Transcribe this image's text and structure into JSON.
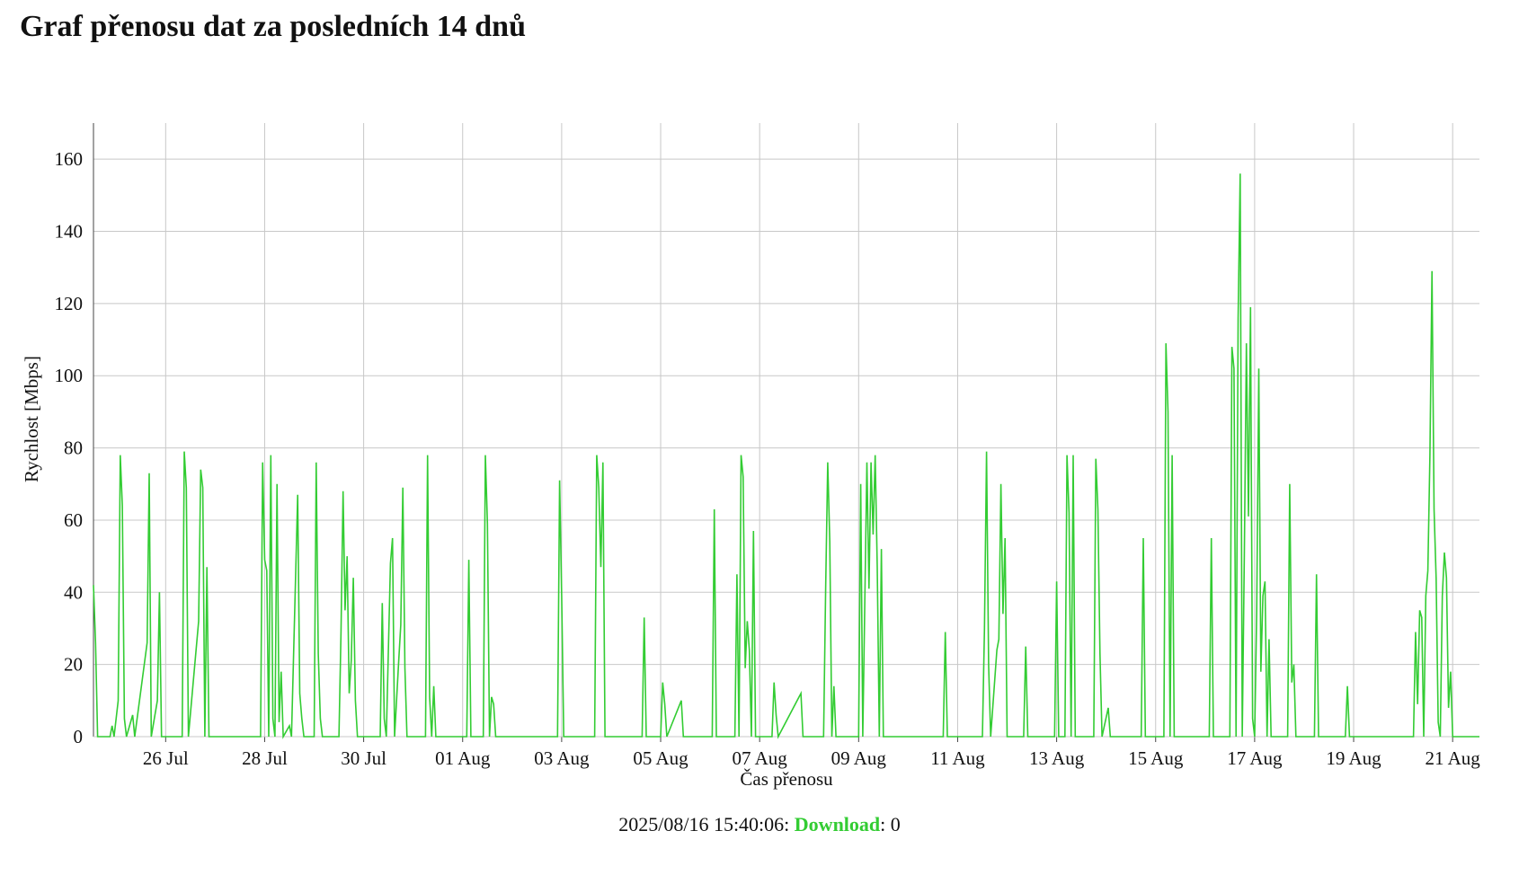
{
  "page": {
    "title": "Graf přenosu dat za posledních 14 dnů"
  },
  "status": {
    "timestamp": "2025/08/16 15:40:06",
    "separator": ":",
    "series_name": "Download",
    "colon": ":",
    "value": "0"
  },
  "colors": {
    "series": "#33cc33",
    "grid": "#c8c8c8",
    "axis": "#444444"
  },
  "chart_data": {
    "type": "line",
    "title": "",
    "xlabel": "Čas přenosu",
    "ylabel": "Rychlost [Mbps]",
    "xlim": [
      "2025-07-24T13:00",
      "2025-08-21T13:00"
    ],
    "ylim": [
      0,
      170
    ],
    "yticks": [
      0,
      20,
      40,
      60,
      80,
      100,
      120,
      140,
      160
    ],
    "xticks": [
      {
        "date": "2025-07-26",
        "label": "26 Jul"
      },
      {
        "date": "2025-07-28",
        "label": "28 Jul"
      },
      {
        "date": "2025-07-30",
        "label": "30 Jul"
      },
      {
        "date": "2025-08-01",
        "label": "01 Aug"
      },
      {
        "date": "2025-08-03",
        "label": "03 Aug"
      },
      {
        "date": "2025-08-05",
        "label": "05 Aug"
      },
      {
        "date": "2025-08-07",
        "label": "07 Aug"
      },
      {
        "date": "2025-08-09",
        "label": "09 Aug"
      },
      {
        "date": "2025-08-11",
        "label": "11 Aug"
      },
      {
        "date": "2025-08-13",
        "label": "13 Aug"
      },
      {
        "date": "2025-08-15",
        "label": "15 Aug"
      },
      {
        "date": "2025-08-17",
        "label": "17 Aug"
      },
      {
        "date": "2025-08-19",
        "label": "19 Aug"
      },
      {
        "date": "2025-08-21",
        "label": "21 Aug"
      }
    ],
    "grid": true,
    "series": [
      {
        "name": "Download",
        "color": "#33cc33",
        "points": [
          [
            "2025-07-24T13:00",
            42
          ],
          [
            "2025-07-24T14:00",
            26
          ],
          [
            "2025-07-24T15:00",
            0
          ],
          [
            "2025-07-24T21:00",
            0
          ],
          [
            "2025-07-24T22:00",
            3
          ],
          [
            "2025-07-24T23:00",
            0
          ],
          [
            "2025-07-25T01:00",
            10
          ],
          [
            "2025-07-25T02:00",
            78
          ],
          [
            "2025-07-25T03:00",
            64
          ],
          [
            "2025-07-25T04:00",
            5
          ],
          [
            "2025-07-25T05:00",
            0
          ],
          [
            "2025-07-25T08:00",
            6
          ],
          [
            "2025-07-25T09:00",
            0
          ],
          [
            "2025-07-25T15:00",
            26
          ],
          [
            "2025-07-25T16:00",
            73
          ],
          [
            "2025-07-25T17:00",
            0
          ],
          [
            "2025-07-25T20:00",
            10
          ],
          [
            "2025-07-25T21:00",
            40
          ],
          [
            "2025-07-25T22:00",
            0
          ],
          [
            "2025-07-26T08:00",
            0
          ],
          [
            "2025-07-26T09:00",
            79
          ],
          [
            "2025-07-26T10:00",
            69
          ],
          [
            "2025-07-26T11:00",
            0
          ],
          [
            "2025-07-26T16:00",
            32
          ],
          [
            "2025-07-26T17:00",
            74
          ],
          [
            "2025-07-26T18:00",
            69
          ],
          [
            "2025-07-26T19:00",
            0
          ],
          [
            "2025-07-26T20:00",
            47
          ],
          [
            "2025-07-26T21:00",
            0
          ],
          [
            "2025-07-27T22:00",
            0
          ],
          [
            "2025-07-27T23:00",
            76
          ],
          [
            "2025-07-28T00:00",
            49
          ],
          [
            "2025-07-28T01:00",
            46
          ],
          [
            "2025-07-28T02:00",
            0
          ],
          [
            "2025-07-28T03:00",
            78
          ],
          [
            "2025-07-28T04:00",
            5
          ],
          [
            "2025-07-28T05:00",
            0
          ],
          [
            "2025-07-28T06:00",
            70
          ],
          [
            "2025-07-28T07:00",
            4
          ],
          [
            "2025-07-28T08:00",
            18
          ],
          [
            "2025-07-28T09:00",
            0
          ],
          [
            "2025-07-28T12:00",
            3
          ],
          [
            "2025-07-28T13:00",
            0
          ],
          [
            "2025-07-28T16:00",
            67
          ],
          [
            "2025-07-28T17:00",
            12
          ],
          [
            "2025-07-28T18:00",
            5
          ],
          [
            "2025-07-28T19:00",
            0
          ],
          [
            "2025-07-29T00:00",
            0
          ],
          [
            "2025-07-29T01:00",
            76
          ],
          [
            "2025-07-29T02:00",
            23
          ],
          [
            "2025-07-29T03:00",
            5
          ],
          [
            "2025-07-29T04:00",
            0
          ],
          [
            "2025-07-29T12:00",
            0
          ],
          [
            "2025-07-29T13:00",
            29
          ],
          [
            "2025-07-29T14:00",
            68
          ],
          [
            "2025-07-29T15:00",
            35
          ],
          [
            "2025-07-29T16:00",
            50
          ],
          [
            "2025-07-29T17:00",
            12
          ],
          [
            "2025-07-29T18:00",
            21
          ],
          [
            "2025-07-29T19:00",
            44
          ],
          [
            "2025-07-29T20:00",
            10
          ],
          [
            "2025-07-29T21:00",
            0
          ],
          [
            "2025-07-30T08:00",
            0
          ],
          [
            "2025-07-30T09:00",
            37
          ],
          [
            "2025-07-30T10:00",
            5
          ],
          [
            "2025-07-30T11:00",
            0
          ],
          [
            "2025-07-30T13:00",
            48
          ],
          [
            "2025-07-30T14:00",
            55
          ],
          [
            "2025-07-30T15:00",
            0
          ],
          [
            "2025-07-30T17:00",
            21
          ],
          [
            "2025-07-30T18:00",
            31
          ],
          [
            "2025-07-30T19:00",
            69
          ],
          [
            "2025-07-30T20:00",
            19
          ],
          [
            "2025-07-30T21:00",
            0
          ],
          [
            "2025-07-31T06:00",
            0
          ],
          [
            "2025-07-31T07:00",
            78
          ],
          [
            "2025-07-31T08:00",
            11
          ],
          [
            "2025-07-31T09:00",
            0
          ],
          [
            "2025-07-31T10:00",
            14
          ],
          [
            "2025-07-31T11:00",
            0
          ],
          [
            "2025-08-01T02:00",
            0
          ],
          [
            "2025-08-01T03:00",
            49
          ],
          [
            "2025-08-01T04:00",
            0
          ],
          [
            "2025-08-01T10:00",
            0
          ],
          [
            "2025-08-01T11:00",
            78
          ],
          [
            "2025-08-01T12:00",
            59
          ],
          [
            "2025-08-01T13:00",
            0
          ],
          [
            "2025-08-01T14:00",
            11
          ],
          [
            "2025-08-01T15:00",
            9
          ],
          [
            "2025-08-01T16:00",
            0
          ],
          [
            "2025-08-02T22:00",
            0
          ],
          [
            "2025-08-02T23:00",
            71
          ],
          [
            "2025-08-03T00:00",
            39
          ],
          [
            "2025-08-03T01:00",
            0
          ],
          [
            "2025-08-03T16:00",
            0
          ],
          [
            "2025-08-03T17:00",
            78
          ],
          [
            "2025-08-03T18:00",
            69
          ],
          [
            "2025-08-03T19:00",
            47
          ],
          [
            "2025-08-03T20:00",
            76
          ],
          [
            "2025-08-03T21:00",
            0
          ],
          [
            "2025-08-04T15:00",
            0
          ],
          [
            "2025-08-04T16:00",
            33
          ],
          [
            "2025-08-04T17:00",
            0
          ],
          [
            "2025-08-05T00:00",
            0
          ],
          [
            "2025-08-05T01:00",
            15
          ],
          [
            "2025-08-05T02:00",
            9
          ],
          [
            "2025-08-05T03:00",
            0
          ],
          [
            "2025-08-05T10:00",
            10
          ],
          [
            "2025-08-05T11:00",
            0
          ],
          [
            "2025-08-06T01:00",
            0
          ],
          [
            "2025-08-06T02:00",
            63
          ],
          [
            "2025-08-06T03:00",
            0
          ],
          [
            "2025-08-06T12:00",
            0
          ],
          [
            "2025-08-06T13:00",
            45
          ],
          [
            "2025-08-06T14:00",
            0
          ],
          [
            "2025-08-06T15:00",
            78
          ],
          [
            "2025-08-06T16:00",
            72
          ],
          [
            "2025-08-06T17:00",
            19
          ],
          [
            "2025-08-06T18:00",
            32
          ],
          [
            "2025-08-06T19:00",
            24
          ],
          [
            "2025-08-06T20:00",
            0
          ],
          [
            "2025-08-06T21:00",
            57
          ],
          [
            "2025-08-06T22:00",
            0
          ],
          [
            "2025-08-07T06:00",
            0
          ],
          [
            "2025-08-07T07:00",
            15
          ],
          [
            "2025-08-07T08:00",
            6
          ],
          [
            "2025-08-07T09:00",
            0
          ],
          [
            "2025-08-07T20:00",
            12
          ],
          [
            "2025-08-07T21:00",
            0
          ],
          [
            "2025-08-08T07:00",
            0
          ],
          [
            "2025-08-08T08:00",
            41
          ],
          [
            "2025-08-08T09:00",
            76
          ],
          [
            "2025-08-08T10:00",
            54
          ],
          [
            "2025-08-08T11:00",
            0
          ],
          [
            "2025-08-08T12:00",
            14
          ],
          [
            "2025-08-08T13:00",
            0
          ],
          [
            "2025-08-09T00:00",
            0
          ],
          [
            "2025-08-09T01:00",
            70
          ],
          [
            "2025-08-09T02:00",
            0
          ],
          [
            "2025-08-09T04:00",
            76
          ],
          [
            "2025-08-09T05:00",
            41
          ],
          [
            "2025-08-09T06:00",
            76
          ],
          [
            "2025-08-09T07:00",
            56
          ],
          [
            "2025-08-09T08:00",
            78
          ],
          [
            "2025-08-09T09:00",
            47
          ],
          [
            "2025-08-09T10:00",
            0
          ],
          [
            "2025-08-09T11:00",
            52
          ],
          [
            "2025-08-09T12:00",
            0
          ],
          [
            "2025-08-10T17:00",
            0
          ],
          [
            "2025-08-10T18:00",
            29
          ],
          [
            "2025-08-10T19:00",
            0
          ],
          [
            "2025-08-11T12:00",
            0
          ],
          [
            "2025-08-11T13:00",
            30
          ],
          [
            "2025-08-11T14:00",
            79
          ],
          [
            "2025-08-11T15:00",
            20
          ],
          [
            "2025-08-11T16:00",
            0
          ],
          [
            "2025-08-11T19:00",
            24
          ],
          [
            "2025-08-11T20:00",
            27
          ],
          [
            "2025-08-11T21:00",
            70
          ],
          [
            "2025-08-11T22:00",
            34
          ],
          [
            "2025-08-11T23:00",
            55
          ],
          [
            "2025-08-12T00:00",
            0
          ],
          [
            "2025-08-12T08:00",
            0
          ],
          [
            "2025-08-12T09:00",
            25
          ],
          [
            "2025-08-12T10:00",
            0
          ],
          [
            "2025-08-12T23:00",
            0
          ],
          [
            "2025-08-13T00:00",
            43
          ],
          [
            "2025-08-13T01:00",
            0
          ],
          [
            "2025-08-13T04:00",
            0
          ],
          [
            "2025-08-13T05:00",
            78
          ],
          [
            "2025-08-13T06:00",
            62
          ],
          [
            "2025-08-13T07:00",
            0
          ],
          [
            "2025-08-13T08:00",
            78
          ],
          [
            "2025-08-13T09:00",
            0
          ],
          [
            "2025-08-13T18:00",
            0
          ],
          [
            "2025-08-13T19:00",
            77
          ],
          [
            "2025-08-13T20:00",
            63
          ],
          [
            "2025-08-13T21:00",
            23
          ],
          [
            "2025-08-13T22:00",
            0
          ],
          [
            "2025-08-14T01:00",
            8
          ],
          [
            "2025-08-14T02:00",
            0
          ],
          [
            "2025-08-14T17:00",
            0
          ],
          [
            "2025-08-14T18:00",
            55
          ],
          [
            "2025-08-14T19:00",
            0
          ],
          [
            "2025-08-15T04:00",
            0
          ],
          [
            "2025-08-15T05:00",
            109
          ],
          [
            "2025-08-15T06:00",
            90
          ],
          [
            "2025-08-15T07:00",
            0
          ],
          [
            "2025-08-15T08:00",
            78
          ],
          [
            "2025-08-15T09:00",
            0
          ],
          [
            "2025-08-16T02:00",
            0
          ],
          [
            "2025-08-16T03:00",
            55
          ],
          [
            "2025-08-16T04:00",
            0
          ],
          [
            "2025-08-16T12:00",
            0
          ],
          [
            "2025-08-16T13:00",
            108
          ],
          [
            "2025-08-16T14:00",
            102
          ],
          [
            "2025-08-16T15:00",
            0
          ],
          [
            "2025-08-16T16:00",
            116
          ],
          [
            "2025-08-16T17:00",
            156
          ],
          [
            "2025-08-16T18:00",
            0
          ],
          [
            "2025-08-16T19:00",
            50
          ],
          [
            "2025-08-16T20:00",
            109
          ],
          [
            "2025-08-16T21:00",
            61
          ],
          [
            "2025-08-16T22:00",
            119
          ],
          [
            "2025-08-16T23:00",
            5
          ],
          [
            "2025-08-17T00:00",
            0
          ],
          [
            "2025-08-17T01:00",
            35
          ],
          [
            "2025-08-17T02:00",
            102
          ],
          [
            "2025-08-17T03:00",
            18
          ],
          [
            "2025-08-17T04:00",
            39
          ],
          [
            "2025-08-17T05:00",
            43
          ],
          [
            "2025-08-17T06:00",
            0
          ],
          [
            "2025-08-17T07:00",
            27
          ],
          [
            "2025-08-17T08:00",
            0
          ],
          [
            "2025-08-17T16:00",
            0
          ],
          [
            "2025-08-17T17:00",
            70
          ],
          [
            "2025-08-17T18:00",
            15
          ],
          [
            "2025-08-17T19:00",
            20
          ],
          [
            "2025-08-17T20:00",
            0
          ],
          [
            "2025-08-18T05:00",
            0
          ],
          [
            "2025-08-18T06:00",
            45
          ],
          [
            "2025-08-18T07:00",
            0
          ],
          [
            "2025-08-18T20:00",
            0
          ],
          [
            "2025-08-18T21:00",
            14
          ],
          [
            "2025-08-18T22:00",
            0
          ],
          [
            "2025-08-20T05:00",
            0
          ],
          [
            "2025-08-20T06:00",
            29
          ],
          [
            "2025-08-20T07:00",
            9
          ],
          [
            "2025-08-20T08:00",
            35
          ],
          [
            "2025-08-20T09:00",
            33
          ],
          [
            "2025-08-20T10:00",
            0
          ],
          [
            "2025-08-20T11:00",
            39
          ],
          [
            "2025-08-20T12:00",
            46
          ],
          [
            "2025-08-20T13:00",
            78
          ],
          [
            "2025-08-20T14:00",
            129
          ],
          [
            "2025-08-20T15:00",
            63
          ],
          [
            "2025-08-20T16:00",
            44
          ],
          [
            "2025-08-20T17:00",
            4
          ],
          [
            "2025-08-20T18:00",
            0
          ],
          [
            "2025-08-20T19:00",
            39
          ],
          [
            "2025-08-20T20:00",
            51
          ],
          [
            "2025-08-20T21:00",
            44
          ],
          [
            "2025-08-20T22:00",
            8
          ],
          [
            "2025-08-20T23:00",
            18
          ],
          [
            "2025-08-21T00:00",
            0
          ],
          [
            "2025-08-21T13:00",
            0
          ]
        ]
      }
    ]
  }
}
